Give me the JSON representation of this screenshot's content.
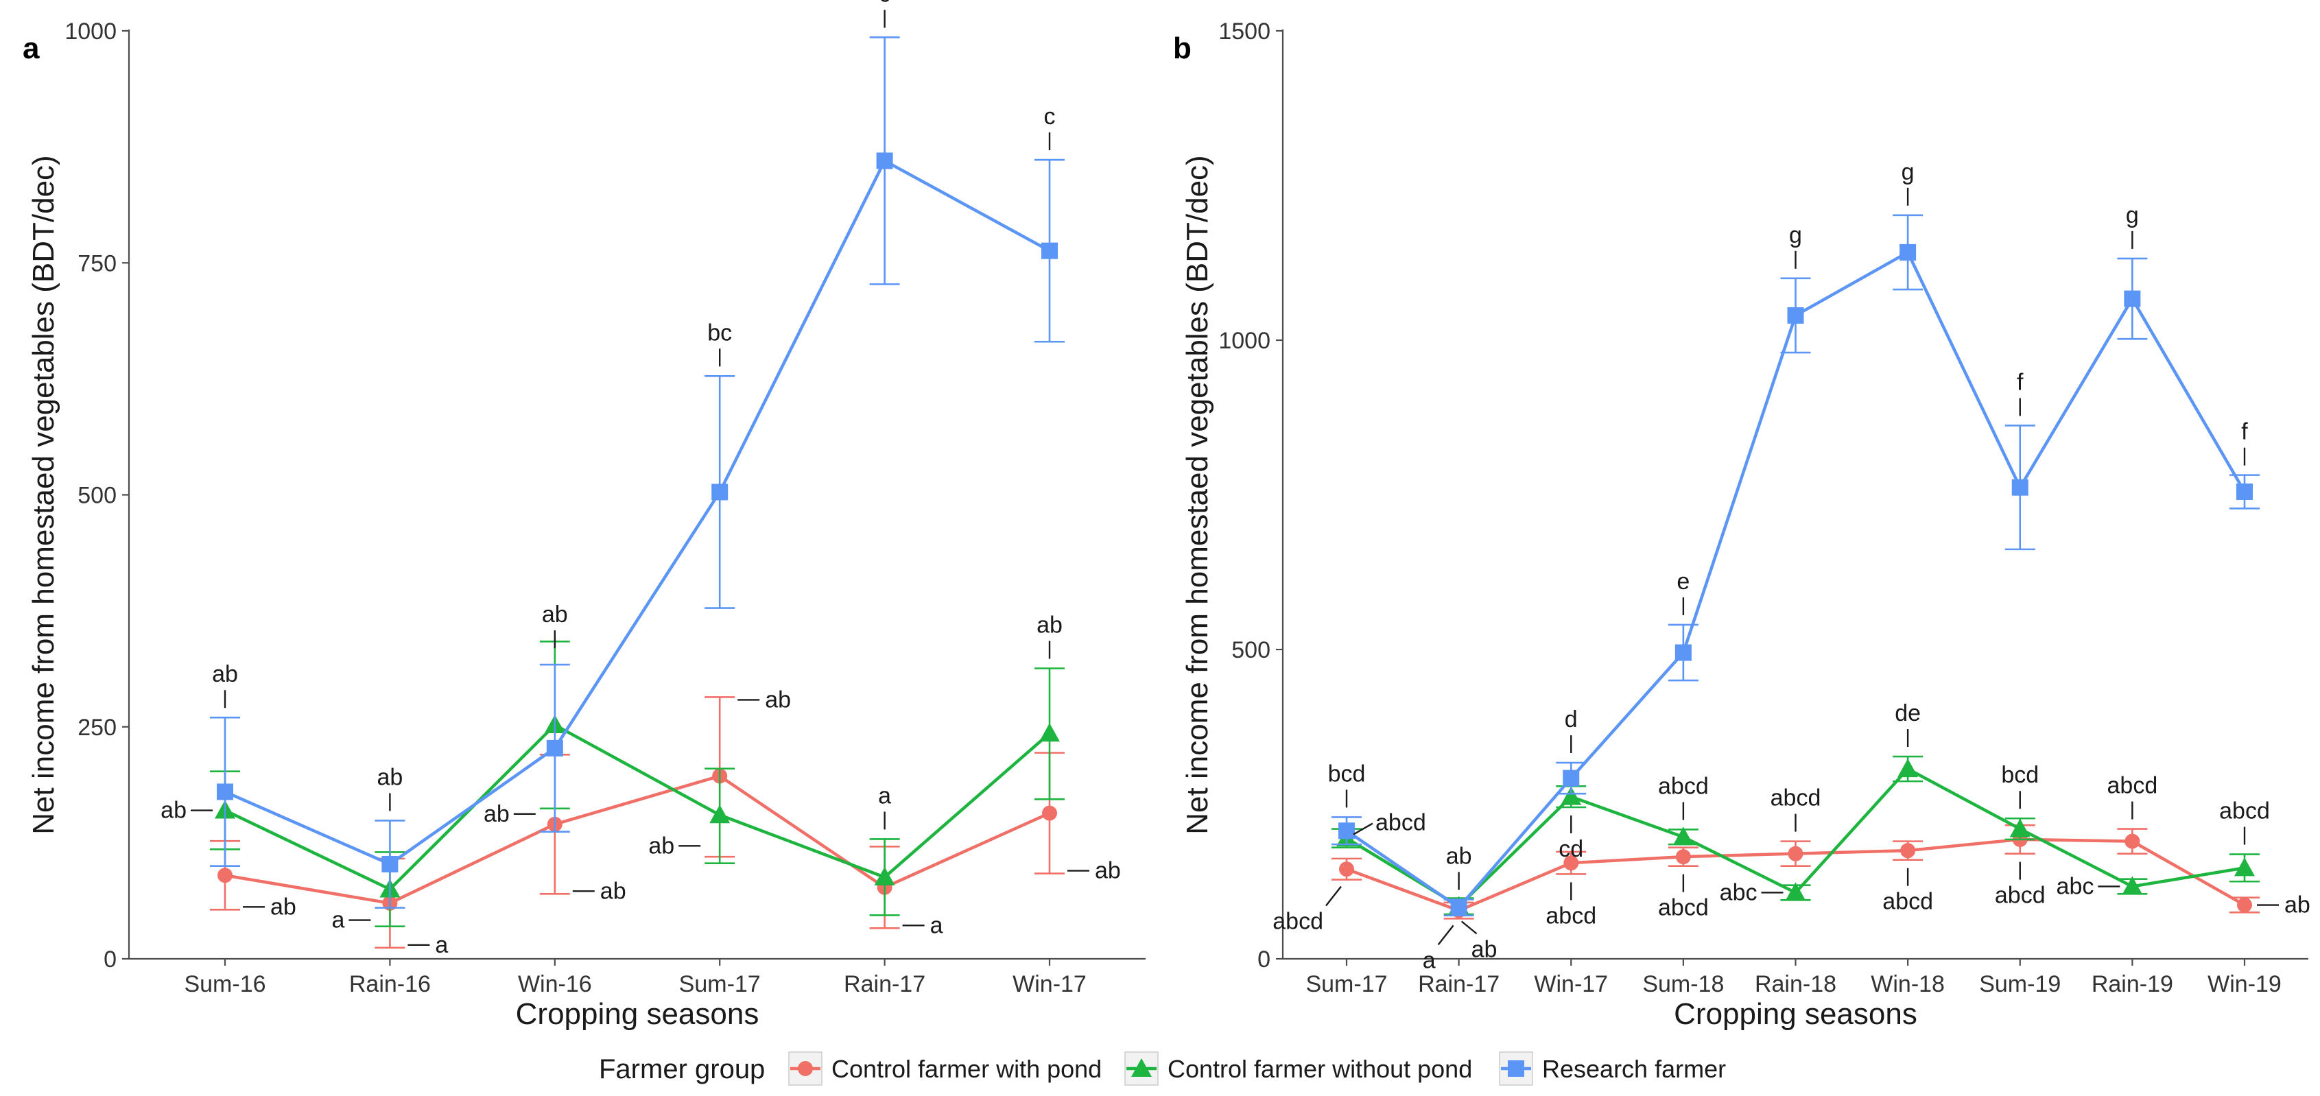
{
  "legend": {
    "title": "Farmer group",
    "entries": [
      {
        "name": "Control farmer with pond",
        "color": "#F07068",
        "marker": "circle"
      },
      {
        "name": "Control farmer without pond",
        "color": "#1DB53F",
        "marker": "triangle"
      },
      {
        "name": "Research farmer",
        "color": "#5B95F5",
        "marker": "square"
      }
    ]
  },
  "chart_data": [
    {
      "panel": "a",
      "type": "line",
      "xlabel": "Cropping seasons",
      "ylabel": "Net income from homestaed vegetables (BDT/dec)",
      "ylim": [
        0,
        1000
      ],
      "yticks": [
        0,
        250,
        500,
        750,
        1000
      ],
      "categories": [
        "Sum-16",
        "Rain-16",
        "Win-16",
        "Sum-17",
        "Rain-17",
        "Win-17"
      ],
      "series": [
        {
          "name": "Control farmer with pond",
          "values": [
            90,
            60,
            145,
            197,
            77,
            157
          ],
          "lower": [
            53,
            12,
            70,
            110,
            33,
            92
          ],
          "upper": [
            127,
            108,
            220,
            282,
            121,
            222
          ]
        },
        {
          "name": "Control farmer without pond",
          "values": [
            160,
            75,
            252,
            155,
            88,
            243
          ],
          "lower": [
            118,
            35,
            162,
            103,
            47,
            172
          ],
          "upper": [
            202,
            115,
            342,
            205,
            129,
            313
          ]
        },
        {
          "name": "Research farmer",
          "values": [
            180,
            102,
            227,
            503,
            860,
            763
          ],
          "lower": [
            100,
            55,
            137,
            378,
            727,
            665
          ],
          "upper": [
            260,
            149,
            317,
            628,
            993,
            861
          ]
        }
      ],
      "annotations": [
        {
          "label": "ab",
          "cat": 0,
          "series": 2,
          "pos": "above"
        },
        {
          "label": "ab",
          "cat": 0,
          "series": 1,
          "pos": "left"
        },
        {
          "label": "ab",
          "cat": 0,
          "series": 0,
          "pos": "right-low"
        },
        {
          "label": "ab",
          "cat": 1,
          "series": 2,
          "pos": "above"
        },
        {
          "label": "a",
          "cat": 1,
          "series": 1,
          "pos": "left-low"
        },
        {
          "label": "a",
          "cat": 1,
          "series": 0,
          "pos": "right-low"
        },
        {
          "label": "ab",
          "cat": 2,
          "series": 2,
          "pos": "above-high"
        },
        {
          "label": "ab",
          "cat": 2,
          "series": 0,
          "pos": "left-high"
        },
        {
          "label": "ab",
          "cat": 2,
          "series": 0,
          "pos": "right-low"
        },
        {
          "label": "bc",
          "cat": 3,
          "series": 2,
          "pos": "above"
        },
        {
          "label": "ab",
          "cat": 3,
          "series": 0,
          "pos": "right-high"
        },
        {
          "label": "ab",
          "cat": 3,
          "series": 1,
          "pos": "left-low"
        },
        {
          "label": "c",
          "cat": 4,
          "series": 2,
          "pos": "above"
        },
        {
          "label": "a",
          "cat": 4,
          "series": 1,
          "pos": "above"
        },
        {
          "label": "a",
          "cat": 4,
          "series": 0,
          "pos": "right-low"
        },
        {
          "label": "c",
          "cat": 5,
          "series": 2,
          "pos": "above"
        },
        {
          "label": "ab",
          "cat": 5,
          "series": 1,
          "pos": "above"
        },
        {
          "label": "ab",
          "cat": 5,
          "series": 0,
          "pos": "right-low"
        }
      ]
    },
    {
      "panel": "b",
      "type": "line",
      "xlabel": "Cropping seasons",
      "ylabel": "Net income from homestaed vegetables (BDT/dec)",
      "ylim": [
        0,
        1500
      ],
      "yticks": [
        0,
        500,
        1000,
        1500
      ],
      "categories": [
        "Sum-17",
        "Rain-17",
        "Win-17",
        "Sum-18",
        "Rain-18",
        "Win-18",
        "Sum-19",
        "Rain-19",
        "Win-19"
      ],
      "series": [
        {
          "name": "Control farmer with pond",
          "values": [
            145,
            78,
            155,
            165,
            170,
            175,
            193,
            190,
            87
          ],
          "lower": [
            128,
            65,
            137,
            150,
            150,
            160,
            170,
            170,
            75
          ],
          "upper": [
            162,
            91,
            173,
            180,
            190,
            190,
            216,
            210,
            99
          ]
        },
        {
          "name": "Control farmer without pond",
          "values": [
            195,
            85,
            262,
            197,
            107,
            307,
            210,
            117,
            147
          ],
          "lower": [
            180,
            72,
            245,
            185,
            95,
            287,
            193,
            105,
            125
          ],
          "upper": [
            210,
            98,
            279,
            209,
            119,
            327,
            227,
            129,
            169
          ]
        },
        {
          "name": "Research farmer",
          "values": [
            207,
            83,
            292,
            495,
            1040,
            1142,
            762,
            1067,
            755
          ],
          "lower": [
            185,
            70,
            267,
            450,
            980,
            1082,
            662,
            1002,
            728
          ],
          "upper": [
            229,
            96,
            317,
            540,
            1100,
            1202,
            862,
            1132,
            782
          ]
        }
      ],
      "annotations": [
        {
          "label": "bcd",
          "cat": 0,
          "series": 2,
          "pos": "above"
        },
        {
          "label": "abcd",
          "cat": 0,
          "series": 1,
          "pos": "right-diag"
        },
        {
          "label": "abcd",
          "cat": 0,
          "series": 0,
          "pos": "left-diag-low"
        },
        {
          "label": "ab",
          "cat": 1,
          "series": 2,
          "pos": "above"
        },
        {
          "label": "a",
          "cat": 1,
          "series": 0,
          "pos": "left-diag-low"
        },
        {
          "label": "ab",
          "cat": 1,
          "series": 0,
          "pos": "right-diag-low"
        },
        {
          "label": "d",
          "cat": 2,
          "series": 2,
          "pos": "above"
        },
        {
          "label": "cd",
          "cat": 2,
          "series": 1,
          "pos": "below"
        },
        {
          "label": "abcd",
          "cat": 2,
          "series": 0,
          "pos": "below"
        },
        {
          "label": "e",
          "cat": 3,
          "series": 2,
          "pos": "above"
        },
        {
          "label": "abcd",
          "cat": 3,
          "series": 1,
          "pos": "above"
        },
        {
          "label": "abcd",
          "cat": 3,
          "series": 0,
          "pos": "below"
        },
        {
          "label": "g",
          "cat": 4,
          "series": 2,
          "pos": "above"
        },
        {
          "label": "abcd",
          "cat": 4,
          "series": 0,
          "pos": "above"
        },
        {
          "label": "abc",
          "cat": 4,
          "series": 1,
          "pos": "left"
        },
        {
          "label": "g",
          "cat": 5,
          "series": 2,
          "pos": "above"
        },
        {
          "label": "de",
          "cat": 5,
          "series": 1,
          "pos": "above"
        },
        {
          "label": "abcd",
          "cat": 5,
          "series": 0,
          "pos": "below"
        },
        {
          "label": "f",
          "cat": 6,
          "series": 2,
          "pos": "above"
        },
        {
          "label": "bcd",
          "cat": 6,
          "series": 1,
          "pos": "above"
        },
        {
          "label": "abcd",
          "cat": 6,
          "series": 0,
          "pos": "below"
        },
        {
          "label": "g",
          "cat": 7,
          "series": 2,
          "pos": "above"
        },
        {
          "label": "abcd",
          "cat": 7,
          "series": 0,
          "pos": "above"
        },
        {
          "label": "abc",
          "cat": 7,
          "series": 1,
          "pos": "left"
        },
        {
          "label": "f",
          "cat": 8,
          "series": 2,
          "pos": "above"
        },
        {
          "label": "abcd",
          "cat": 8,
          "series": 1,
          "pos": "above"
        },
        {
          "label": "ab",
          "cat": 8,
          "series": 0,
          "pos": "right"
        }
      ]
    }
  ]
}
